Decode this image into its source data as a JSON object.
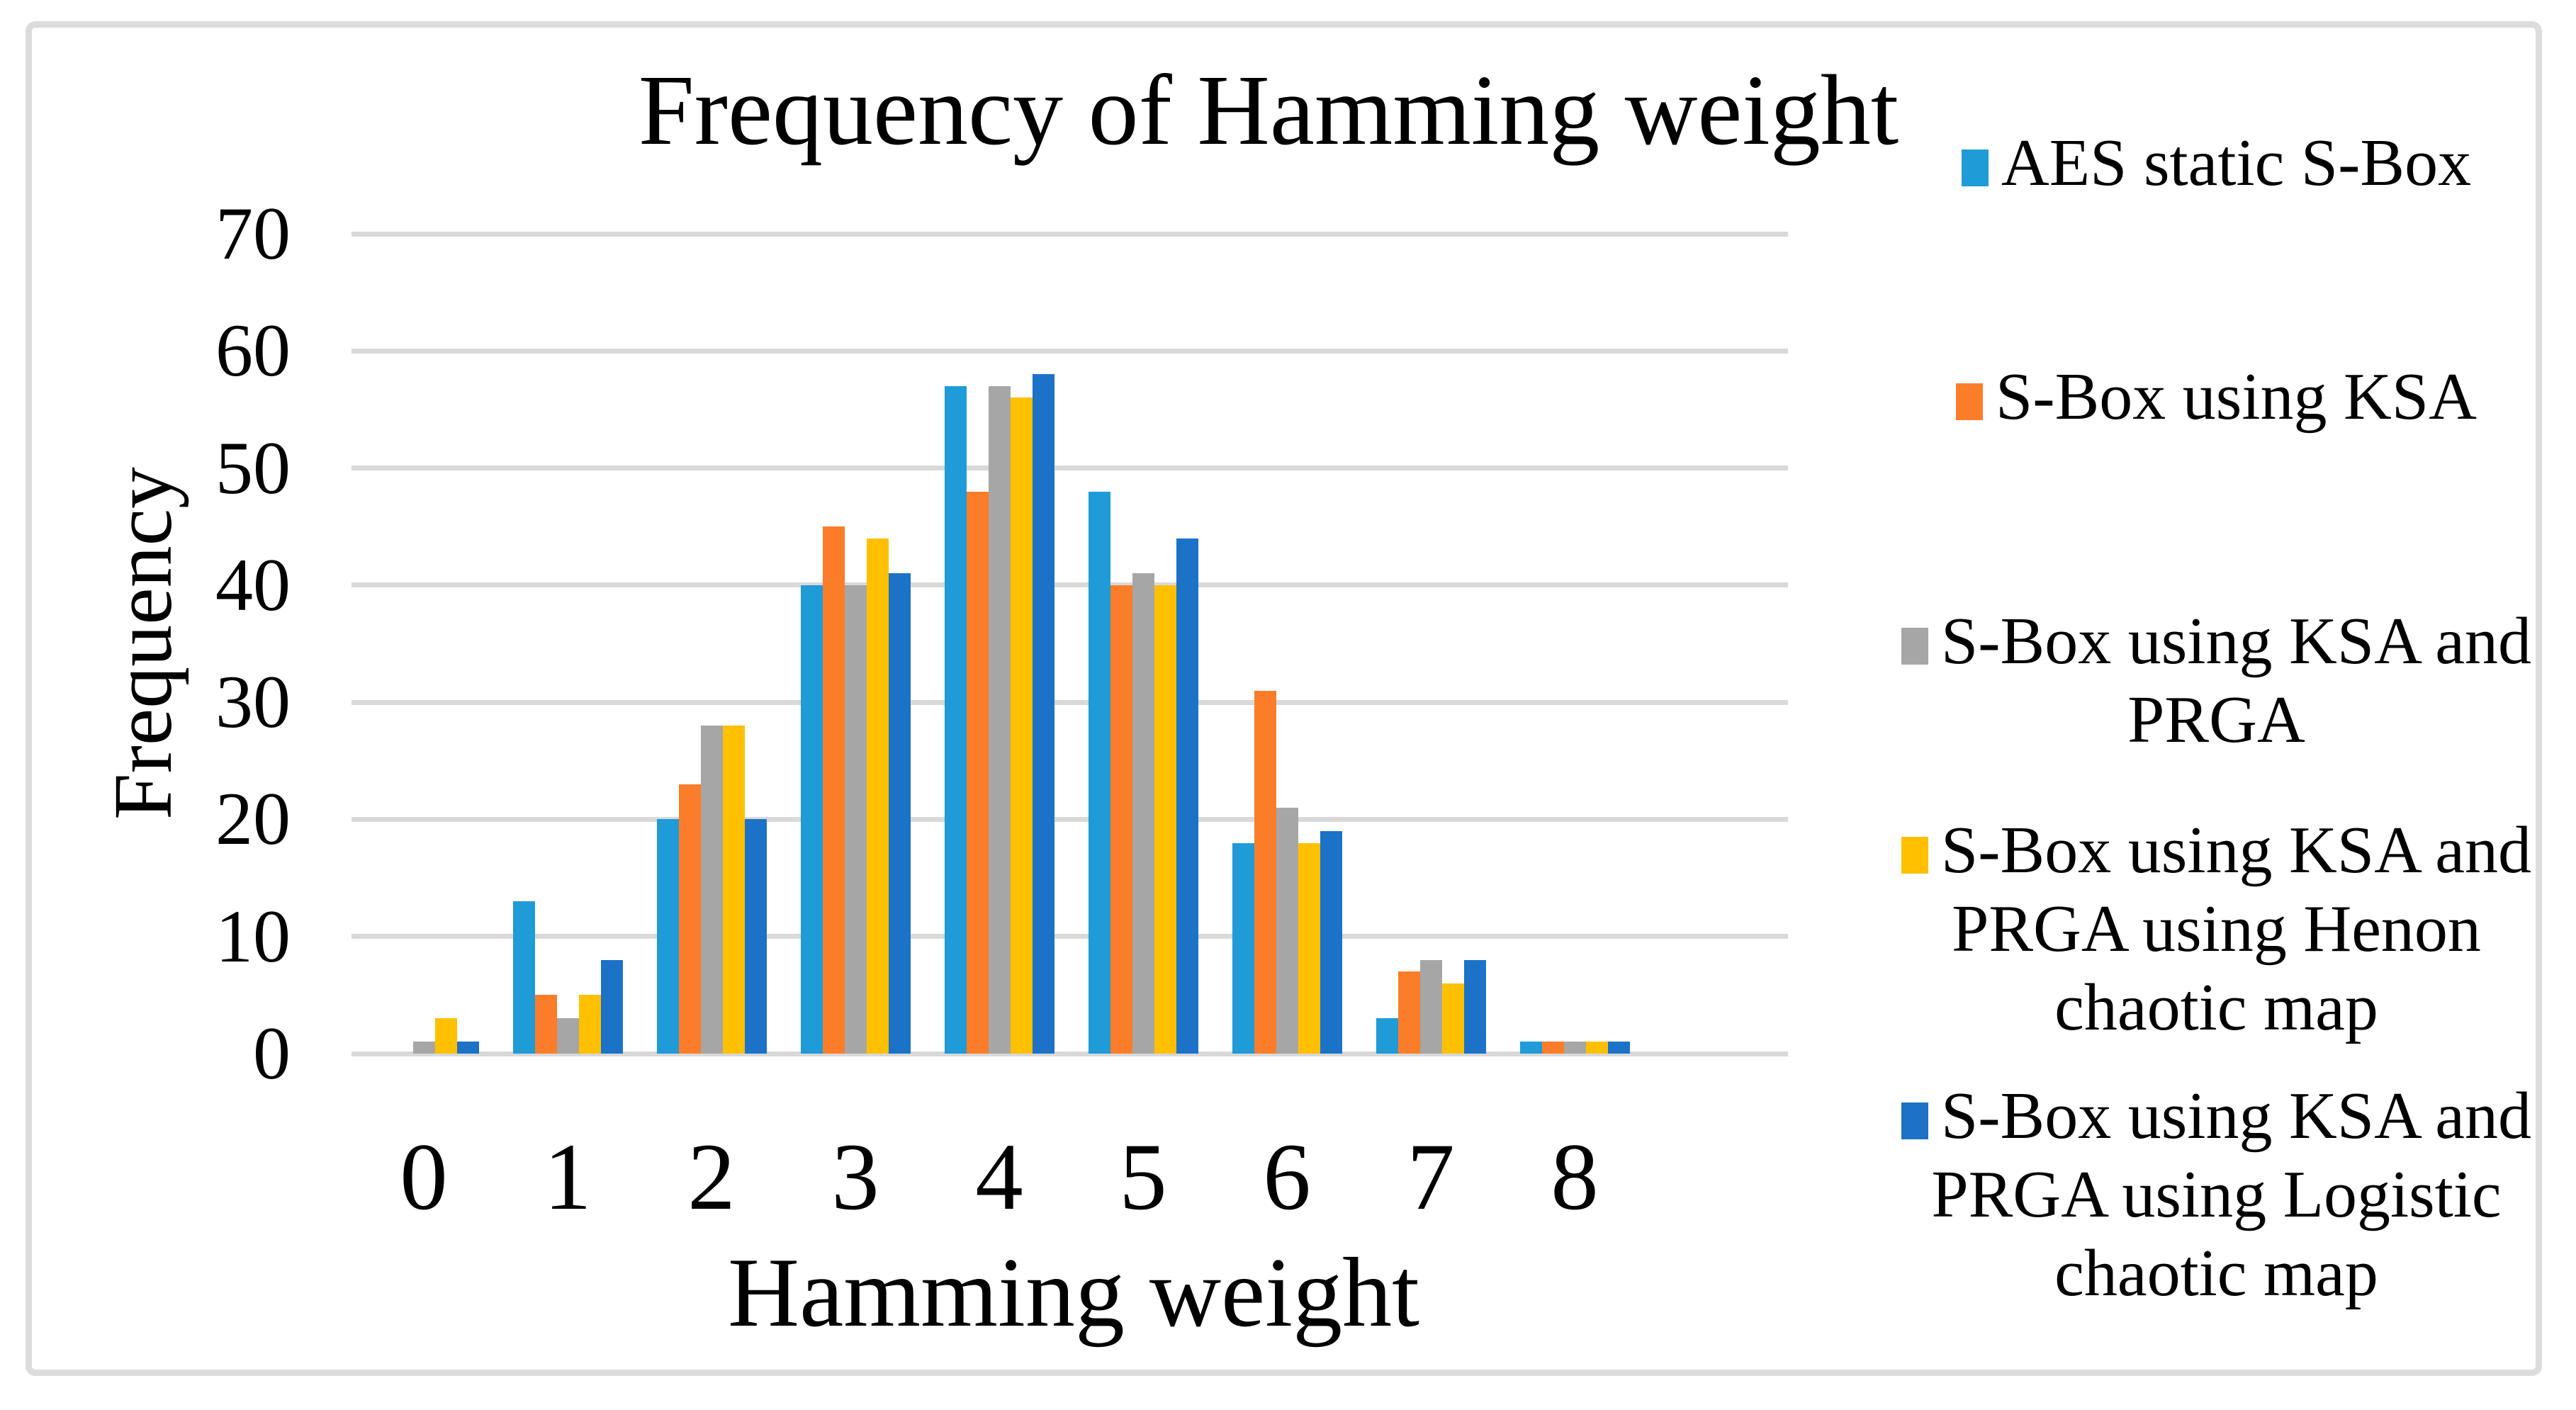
{
  "figure": {
    "title": "Frequency of Hamming weight",
    "x_axis_title": "Hamming weight",
    "y_axis_title": "Frequency"
  },
  "chart_data": {
    "type": "bar",
    "title": "Frequency of Hamming weight",
    "xlabel": "Hamming weight",
    "ylabel": "Frequency",
    "categories": [
      "0",
      "1",
      "2",
      "3",
      "4",
      "5",
      "6",
      "7",
      "8"
    ],
    "y_ticks": [
      0,
      10,
      20,
      30,
      40,
      50,
      60,
      70
    ],
    "ylim": [
      0,
      70
    ],
    "grid": "horizontal",
    "legend_position": "right",
    "series": [
      {
        "name": "AES static S-Box",
        "color": "#1F9BD7",
        "values": [
          0,
          13,
          20,
          40,
          57,
          48,
          18,
          3,
          1
        ]
      },
      {
        "name": "S-Box using KSA",
        "color": "#FB7D29",
        "values": [
          0,
          5,
          23,
          45,
          48,
          40,
          31,
          7,
          1
        ]
      },
      {
        "name": "S-Box using KSA and PRGA",
        "color": "#A6A6A6",
        "values": [
          1,
          3,
          28,
          40,
          57,
          41,
          21,
          8,
          1
        ]
      },
      {
        "name": "S-Box using KSA and PRGA using Henon chaotic map",
        "color": "#FFC000",
        "values": [
          3,
          5,
          28,
          44,
          56,
          40,
          18,
          6,
          1
        ]
      },
      {
        "name": "S-Box using KSA and PRGA using Logistic chaotic map",
        "color": "#1B72C6",
        "values": [
          1,
          8,
          20,
          41,
          58,
          44,
          19,
          8,
          1
        ]
      }
    ],
    "colors": {
      "gridline": "#D9D9D9",
      "frame_border": "#DCDCDC",
      "text": "#000000",
      "background": "#FFFFFF"
    }
  }
}
